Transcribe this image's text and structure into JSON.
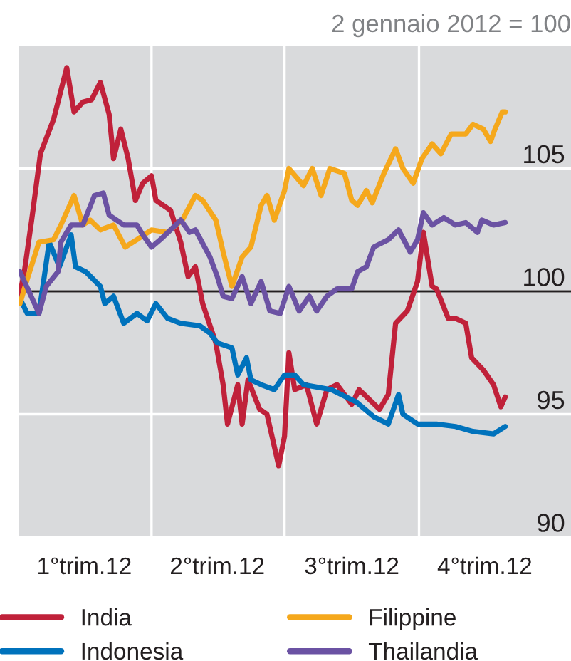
{
  "chart_data": {
    "type": "line",
    "title": "2 gennaio 2012 = 100",
    "xlim": [
      "2012-01-01",
      "2013-01-13"
    ],
    "ylim": [
      90,
      110
    ],
    "xticks": [
      {
        "value": "2012-02-15",
        "label": "1°trim.12"
      },
      {
        "value": "2012-04-01",
        "label": null
      },
      {
        "value": "2012-05-16",
        "label": "2°trim.12"
      },
      {
        "value": "2012-07-01",
        "label": null
      },
      {
        "value": "2012-08-16",
        "label": "3°trim.12"
      },
      {
        "value": "2012-10-01",
        "label": null
      },
      {
        "value": "2012-11-15",
        "label": "4°trim.12"
      }
    ],
    "yticks": [
      90,
      95,
      100,
      105
    ],
    "grid": true,
    "legend": "bottom",
    "line_style": "solid",
    "marker": "none",
    "ref_lines": [
      {
        "axis": "y",
        "value": 100,
        "label": null,
        "color": "#231f20"
      }
    ],
    "series": [
      {
        "name": "India",
        "color": "#c0213a",
        "x": [
          "2012-01-02",
          "2012-01-05",
          "2012-01-10",
          "2012-01-16",
          "2012-01-25",
          "2012-02-03",
          "2012-02-08",
          "2012-02-14",
          "2012-02-20",
          "2012-02-26",
          "2012-03-03",
          "2012-03-06",
          "2012-03-11",
          "2012-03-16",
          "2012-03-21",
          "2012-03-26",
          "2012-04-01",
          "2012-04-04",
          "2012-04-14",
          "2012-04-21",
          "2012-04-26",
          "2012-05-01",
          "2012-05-06",
          "2012-05-15",
          "2012-05-20",
          "2012-05-23",
          "2012-05-30",
          "2012-06-02",
          "2012-06-06",
          "2012-06-14",
          "2012-06-19",
          "2012-06-27",
          "2012-07-01",
          "2012-07-04",
          "2012-07-08",
          "2012-07-16",
          "2012-07-23",
          "2012-07-30",
          "2012-08-06",
          "2012-08-16",
          "2012-08-21",
          "2012-09-04",
          "2012-09-10",
          "2012-09-15",
          "2012-09-23",
          "2012-09-30",
          "2012-10-04",
          "2012-10-10",
          "2012-10-13",
          "2012-10-21",
          "2012-10-26",
          "2012-11-02",
          "2012-11-06",
          "2012-11-14",
          "2012-11-21",
          "2012-11-26",
          "2012-11-29"
        ],
        "values": [
          99.9,
          100.8,
          102.9,
          105.6,
          107.0,
          109.1,
          107.3,
          107.7,
          107.8,
          108.5,
          107.2,
          105.4,
          106.6,
          105.4,
          103.7,
          104.4,
          104.7,
          103.7,
          103.3,
          102.0,
          100.6,
          101.0,
          99.5,
          97.9,
          96.2,
          94.6,
          96.2,
          94.6,
          96.4,
          95.2,
          95.0,
          92.9,
          94.1,
          97.5,
          96.0,
          96.2,
          94.6,
          96.0,
          96.2,
          95.4,
          96.0,
          95.2,
          95.8,
          98.7,
          99.2,
          100.4,
          102.4,
          100.2,
          100.1,
          98.9,
          98.9,
          98.7,
          97.3,
          96.8,
          96.2,
          95.3,
          95.7
        ]
      },
      {
        "name": "Indonesia",
        "color": "#0072bc",
        "x": [
          "2012-01-02",
          "2012-01-07",
          "2012-01-15",
          "2012-01-22",
          "2012-01-29",
          "2012-02-06",
          "2012-02-09",
          "2012-02-16",
          "2012-02-26",
          "2012-02-29",
          "2012-03-06",
          "2012-03-13",
          "2012-03-22",
          "2012-03-29",
          "2012-04-04",
          "2012-04-12",
          "2012-04-21",
          "2012-05-04",
          "2012-05-11",
          "2012-05-16",
          "2012-05-26",
          "2012-05-30",
          "2012-06-05",
          "2012-06-08",
          "2012-06-15",
          "2012-06-24",
          "2012-07-01",
          "2012-07-08",
          "2012-07-14",
          "2012-08-02",
          "2012-08-19",
          "2012-08-31",
          "2012-09-10",
          "2012-09-17",
          "2012-09-20",
          "2012-09-30",
          "2012-10-13",
          "2012-10-26",
          "2012-11-07",
          "2012-11-21",
          "2012-11-29"
        ],
        "values": [
          99.7,
          99.1,
          99.1,
          102.0,
          101.0,
          102.3,
          101.0,
          100.8,
          100.2,
          99.5,
          99.8,
          98.7,
          99.1,
          98.8,
          99.5,
          98.9,
          98.7,
          98.6,
          98.3,
          97.9,
          97.7,
          96.6,
          97.3,
          96.4,
          96.2,
          96.0,
          96.6,
          96.6,
          96.2,
          96.0,
          95.5,
          94.9,
          94.6,
          95.8,
          95.0,
          94.6,
          94.6,
          94.5,
          94.3,
          94.2,
          94.5
        ]
      },
      {
        "name": "Filippine",
        "color": "#f5a81c",
        "x": [
          "2012-01-02",
          "2012-01-07",
          "2012-01-15",
          "2012-01-25",
          "2012-01-30",
          "2012-02-08",
          "2012-02-14",
          "2012-02-19",
          "2012-02-26",
          "2012-03-06",
          "2012-03-14",
          "2012-03-22",
          "2012-04-01",
          "2012-04-12",
          "2012-04-22",
          "2012-05-01",
          "2012-05-06",
          "2012-05-15",
          "2012-05-20",
          "2012-05-26",
          "2012-06-02",
          "2012-06-08",
          "2012-06-15",
          "2012-06-19",
          "2012-06-24",
          "2012-07-01",
          "2012-07-04",
          "2012-07-14",
          "2012-07-20",
          "2012-07-26",
          "2012-08-01",
          "2012-08-11",
          "2012-08-16",
          "2012-08-20",
          "2012-08-26",
          "2012-08-30",
          "2012-09-07",
          "2012-09-15",
          "2012-09-20",
          "2012-09-27",
          "2012-10-03",
          "2012-10-10",
          "2012-10-16",
          "2012-10-23",
          "2012-11-02",
          "2012-11-07",
          "2012-11-14",
          "2012-11-19",
          "2012-11-22",
          "2012-11-27",
          "2012-11-29"
        ],
        "values": [
          99.5,
          100.5,
          102.0,
          102.1,
          102.7,
          103.9,
          102.7,
          102.9,
          102.5,
          102.7,
          101.8,
          102.1,
          102.5,
          102.4,
          102.9,
          103.9,
          103.7,
          102.9,
          101.6,
          100.2,
          101.4,
          101.8,
          103.5,
          103.9,
          102.9,
          104.1,
          105.0,
          104.3,
          105.0,
          103.9,
          105.0,
          104.8,
          103.7,
          103.5,
          104.1,
          103.6,
          104.8,
          105.8,
          105.0,
          104.4,
          105.4,
          106.0,
          105.6,
          106.4,
          106.4,
          106.8,
          106.6,
          106.1,
          106.6,
          107.3,
          107.3
        ]
      },
      {
        "name": "Thailandia",
        "color": "#6b52a3",
        "x": [
          "2012-01-02",
          "2012-01-15",
          "2012-01-20",
          "2012-01-28",
          "2012-01-30",
          "2012-02-06",
          "2012-02-14",
          "2012-02-22",
          "2012-02-28",
          "2012-03-03",
          "2012-03-13",
          "2012-03-22",
          "2012-03-26",
          "2012-04-01",
          "2012-04-07",
          "2012-04-21",
          "2012-04-27",
          "2012-05-01",
          "2012-05-11",
          "2012-05-16",
          "2012-05-20",
          "2012-05-26",
          "2012-06-02",
          "2012-06-08",
          "2012-06-15",
          "2012-06-21",
          "2012-06-28",
          "2012-07-04",
          "2012-07-11",
          "2012-07-18",
          "2012-07-23",
          "2012-07-30",
          "2012-08-06",
          "2012-08-16",
          "2012-08-20",
          "2012-08-26",
          "2012-08-31",
          "2012-09-10",
          "2012-09-17",
          "2012-09-25",
          "2012-09-30",
          "2012-10-04",
          "2012-10-10",
          "2012-10-18",
          "2012-10-26",
          "2012-11-02",
          "2012-11-10",
          "2012-11-13",
          "2012-11-21",
          "2012-11-29"
        ],
        "values": [
          100.8,
          99.1,
          100.2,
          100.8,
          102.0,
          102.7,
          102.7,
          103.9,
          104.0,
          103.1,
          102.7,
          102.7,
          102.3,
          101.8,
          102.1,
          102.9,
          102.4,
          102.5,
          101.4,
          100.6,
          99.8,
          99.7,
          100.6,
          99.5,
          100.4,
          99.2,
          99.1,
          100.2,
          99.2,
          99.8,
          99.2,
          99.8,
          100.1,
          100.1,
          100.8,
          101.0,
          101.8,
          102.1,
          102.5,
          101.6,
          102.1,
          103.2,
          102.7,
          103.0,
          102.7,
          102.8,
          102.4,
          102.9,
          102.7,
          102.8
        ]
      }
    ]
  }
}
